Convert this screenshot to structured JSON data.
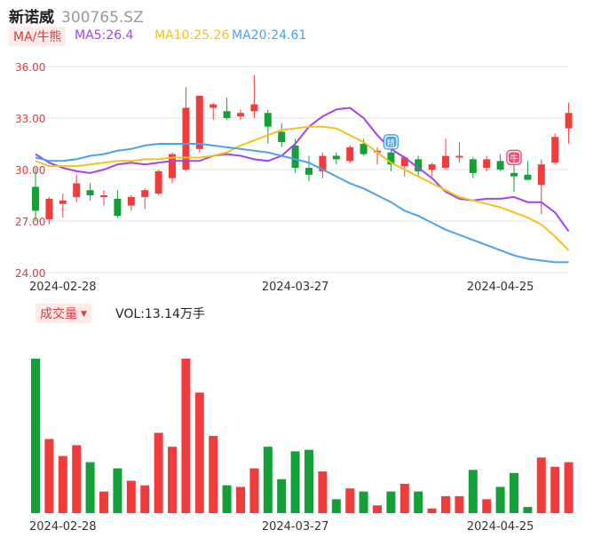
{
  "header": {
    "name": "新诺威",
    "code": "300765.SZ"
  },
  "indicators": {
    "ma_tag": "MA/牛熊",
    "ma5_label": "MA5:26.4",
    "ma10_label": "MA10:25.26",
    "ma20_label": "MA20:24.61",
    "volume_tag": "成交量",
    "volume_label": "VOL:13.14万手"
  },
  "colors": {
    "up": "#f23c3c",
    "down": "#12a037",
    "ma5": "#a543f0",
    "ma10": "#f2c31a",
    "ma20": "#4aa2ee",
    "grid": "#e6e6e6",
    "accent": "#e0393e"
  },
  "chart_data": [
    {
      "type": "candlestick",
      "y_ticks": [
        "36.00",
        "33.00",
        "30.00",
        "27.00",
        "24.00"
      ],
      "ylim": [
        24,
        36
      ],
      "x_tick_labels": [
        {
          "label": "2024-02-28",
          "index": 2
        },
        {
          "label": "2024-03-27",
          "index": 19
        },
        {
          "label": "2024-04-25",
          "index": 34
        }
      ],
      "ohlc": [
        [
          29.0,
          30.1,
          27.0,
          27.6
        ],
        [
          27.1,
          28.4,
          26.8,
          28.3
        ],
        [
          28.0,
          28.6,
          27.2,
          28.2
        ],
        [
          28.4,
          29.7,
          28.1,
          29.2
        ],
        [
          28.8,
          29.2,
          28.2,
          28.5
        ],
        [
          28.4,
          28.8,
          27.9,
          28.5
        ],
        [
          28.3,
          28.8,
          27.2,
          27.3
        ],
        [
          27.9,
          28.5,
          27.6,
          28.4
        ],
        [
          28.4,
          28.9,
          27.7,
          28.8
        ],
        [
          28.6,
          30.0,
          28.5,
          29.9
        ],
        [
          29.5,
          31.0,
          29.2,
          30.9
        ],
        [
          30.0,
          34.8,
          29.9,
          33.6
        ],
        [
          31.2,
          34.3,
          31.0,
          34.3
        ],
        [
          33.6,
          33.9,
          32.9,
          33.8
        ],
        [
          33.4,
          34.2,
          32.9,
          33.0
        ],
        [
          33.1,
          33.5,
          32.9,
          33.3
        ],
        [
          33.4,
          35.5,
          33.0,
          33.8
        ],
        [
          33.3,
          33.5,
          31.5,
          32.5
        ],
        [
          32.2,
          32.7,
          31.3,
          31.6
        ],
        [
          31.4,
          31.8,
          29.8,
          30.1
        ],
        [
          30.1,
          30.8,
          29.3,
          29.7
        ],
        [
          29.9,
          31.0,
          29.5,
          30.8
        ],
        [
          30.8,
          31.0,
          30.3,
          30.6
        ],
        [
          30.5,
          31.4,
          30.4,
          31.3
        ],
        [
          31.5,
          31.8,
          30.8,
          30.9
        ],
        [
          31.0,
          31.3,
          30.3,
          31.1
        ],
        [
          31.0,
          31.4,
          29.9,
          30.3
        ],
        [
          30.2,
          30.8,
          29.6,
          30.7
        ],
        [
          30.6,
          30.8,
          29.6,
          29.9
        ],
        [
          30.0,
          30.4,
          29.6,
          30.3
        ],
        [
          30.1,
          31.8,
          30.0,
          30.8
        ],
        [
          30.7,
          31.6,
          30.4,
          30.8
        ],
        [
          30.6,
          30.7,
          29.5,
          29.8
        ],
        [
          30.1,
          30.8,
          29.9,
          30.6
        ],
        [
          30.5,
          30.9,
          29.9,
          30.0
        ],
        [
          29.8,
          30.5,
          28.7,
          29.6
        ],
        [
          29.7,
          30.5,
          29.4,
          29.4
        ],
        [
          29.1,
          30.6,
          27.4,
          30.3
        ],
        [
          30.4,
          32.1,
          30.3,
          31.9
        ],
        [
          32.4,
          33.9,
          31.5,
          33.3
        ]
      ],
      "series": [
        {
          "name": "MA5",
          "values": [
            30.9,
            30.4,
            30.1,
            29.9,
            29.8,
            30.0,
            30.3,
            30.4,
            30.3,
            30.4,
            30.5,
            30.5,
            30.5,
            30.8,
            30.9,
            30.8,
            30.6,
            30.5,
            30.8,
            31.5,
            32.5,
            33.1,
            33.5,
            33.6,
            33.0,
            32.0,
            31.2,
            30.7,
            30.1,
            29.5,
            28.7,
            28.3,
            28.2,
            28.3,
            28.3,
            28.4,
            28.1,
            28.1,
            27.5,
            26.4
          ]
        },
        {
          "name": "MA10",
          "values": [
            30.5,
            30.2,
            30.2,
            30.2,
            30.3,
            30.4,
            30.5,
            30.5,
            30.6,
            30.6,
            30.7,
            30.7,
            30.7,
            30.8,
            31.0,
            31.4,
            31.7,
            32.0,
            32.3,
            32.4,
            32.5,
            32.5,
            32.4,
            32.0,
            31.6,
            31.0,
            30.4,
            30.0,
            29.6,
            29.2,
            28.8,
            28.4,
            28.2,
            28.0,
            27.8,
            27.5,
            27.2,
            26.8,
            26.1,
            25.3
          ]
        },
        {
          "name": "MA20",
          "values": [
            30.7,
            30.5,
            30.5,
            30.6,
            30.8,
            30.9,
            31.1,
            31.2,
            31.4,
            31.5,
            31.5,
            31.5,
            31.5,
            31.4,
            31.3,
            31.2,
            31.1,
            31.0,
            30.8,
            30.6,
            30.4,
            30.0,
            29.6,
            29.2,
            28.9,
            28.5,
            28.1,
            27.6,
            27.3,
            26.9,
            26.5,
            26.2,
            25.9,
            25.6,
            25.3,
            25.0,
            24.8,
            24.7,
            24.6,
            24.6
          ]
        }
      ],
      "volume": [
        100,
        48,
        37,
        44,
        33,
        14,
        29,
        21,
        18,
        52,
        43,
        100,
        78,
        50,
        18,
        17,
        29,
        43,
        22,
        40,
        41,
        27,
        9,
        16,
        14,
        5,
        14,
        19,
        14,
        3,
        11,
        11,
        28,
        9,
        17,
        26,
        4,
        36,
        30,
        33
      ]
    }
  ],
  "markers": [
    {
      "index": 26,
      "glyph": "精",
      "color": "#4aa2ee"
    },
    {
      "index": 35,
      "glyph": "牛",
      "color": "#f0507a"
    }
  ]
}
